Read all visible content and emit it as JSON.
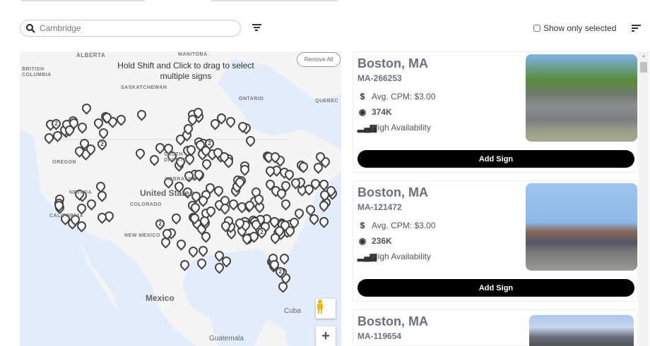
{
  "search": {
    "placeholder": "Cambridge"
  },
  "filters": {
    "show_only_selected": "Show only selected",
    "checked": false
  },
  "map": {
    "hint": "Hold Shift and Click to drag to select multiple signs",
    "remove_all": "Remove All",
    "labels": {
      "alberta": "ALBERTA",
      "manitoba": "MANITOBA",
      "british_columbia": "BRITISH COLUMBIA",
      "saskatchewan": "SASKATCHEWAN",
      "ontario": "ONTARIO",
      "quebec": "QUEBEC",
      "oregon": "OREGON",
      "south_dakota": "SOUTH DAKOTA",
      "nebraska": "NEBRASKA",
      "nevada": "NEVADA",
      "california": "CALIFORNIA",
      "colorado": "COLORADO",
      "new_mexico": "NEW MEXICO",
      "united_states": "United States",
      "mexico": "Mexico",
      "cuba": "Cuba",
      "guatemala": "Guatemala"
    },
    "cluster_count_label": "2"
  },
  "listings": [
    {
      "city": "Boston, MA",
      "id": "MA-266253",
      "cpm": "Avg. CPM: $3.00",
      "impressions": "374K",
      "availability": "High Availability",
      "button": "Add Sign"
    },
    {
      "city": "Boston, MA",
      "id": "MA-121472",
      "cpm": "Avg. CPM: $3.00",
      "impressions": "236K",
      "availability": "High Availability",
      "button": "Add Sign"
    },
    {
      "city": "Boston, MA",
      "id": "MA-119654"
    }
  ],
  "colors": {
    "button": "#000000",
    "title": "#6b6f80",
    "water": "#e3ecfa",
    "land": "#f4f4f4"
  }
}
